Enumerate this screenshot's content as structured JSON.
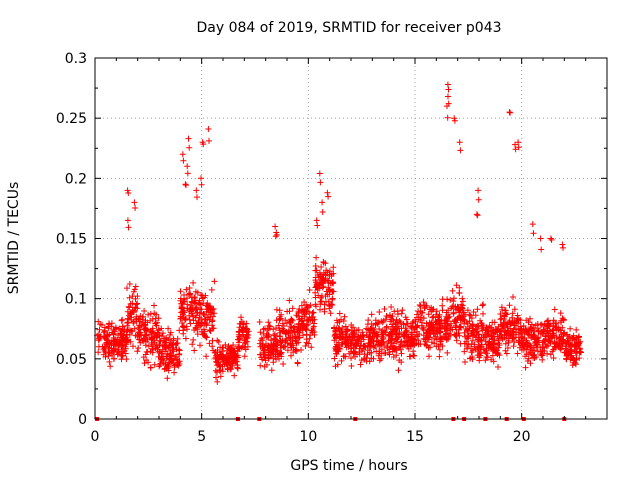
{
  "chart_data": {
    "type": "scatter",
    "title": "Day 084 of 2019, SRMTID for receiver p043",
    "xlabel": "GPS time / hours",
    "ylabel": "SRMTID / TECUs",
    "xlim": [
      0,
      24
    ],
    "ylim": [
      0,
      0.3
    ],
    "xticks": [
      0,
      5,
      10,
      15,
      20
    ],
    "xtick_labels": [
      "0",
      "5",
      "10",
      "15",
      "20"
    ],
    "yticks": [
      0,
      0.05,
      0.1,
      0.15,
      0.2,
      0.25,
      0.3
    ],
    "ytick_labels": [
      "0",
      "0.05",
      "0.1",
      "0.15",
      "0.2",
      "0.25",
      "0.3"
    ],
    "grid": true,
    "marker": "+",
    "marker_color": "#ff0000",
    "series": [
      {
        "name": "SRMTID",
        "note": "dense cloud of ~2500 points between 0.01 and 0.28 TECU; clusters listed as representative samples",
        "clusters": [
          {
            "x": [
              0.1,
              1.5
            ],
            "center": 0.065,
            "spread": 0.03
          },
          {
            "x": [
              1.5,
              2.0
            ],
            "center": 0.085,
            "spread": 0.04,
            "peaks": [
              0.19,
              0.18,
              0.165
            ]
          },
          {
            "x": [
              2.0,
              3.0
            ],
            "center": 0.07,
            "spread": 0.035
          },
          {
            "x": [
              3.0,
              4.0
            ],
            "center": 0.055,
            "spread": 0.03
          },
          {
            "x": [
              4.0,
              4.6
            ],
            "center": 0.09,
            "spread": 0.04,
            "peaks": [
              0.233,
              0.22,
              0.21,
              0.195
            ]
          },
          {
            "x": [
              4.6,
              5.6
            ],
            "center": 0.085,
            "spread": 0.04,
            "peaks": [
              0.241,
              0.23,
              0.2,
              0.19
            ]
          },
          {
            "x": [
              5.6,
              6.7
            ],
            "center": 0.05,
            "spread": 0.025
          },
          {
            "x": [
              6.7,
              7.2
            ],
            "center": 0.07,
            "spread": 0.025
          },
          {
            "x": [
              7.7,
              8.5
            ],
            "center": 0.06,
            "spread": 0.03,
            "peaks": [
              0.16,
              0.155
            ]
          },
          {
            "x": [
              8.5,
              9.5
            ],
            "center": 0.07,
            "spread": 0.035
          },
          {
            "x": [
              9.5,
              10.3
            ],
            "center": 0.08,
            "spread": 0.035
          },
          {
            "x": [
              10.3,
              11.2
            ],
            "center": 0.11,
            "spread": 0.04,
            "peaks": [
              0.204,
              0.188,
              0.18,
              0.165
            ]
          },
          {
            "x": [
              11.2,
              13.0
            ],
            "center": 0.065,
            "spread": 0.03
          },
          {
            "x": [
              13.0,
              15.0
            ],
            "center": 0.07,
            "spread": 0.035
          },
          {
            "x": [
              15.0,
              16.5
            ],
            "center": 0.075,
            "spread": 0.035
          },
          {
            "x": [
              16.5,
              17.3
            ],
            "center": 0.085,
            "spread": 0.04,
            "peaks": [
              0.278,
              0.268,
              0.26,
              0.25,
              0.23
            ]
          },
          {
            "x": [
              17.3,
              18.2
            ],
            "center": 0.07,
            "spread": 0.04,
            "peaks": [
              0.19,
              0.17
            ]
          },
          {
            "x": [
              18.2,
              19.0
            ],
            "center": 0.065,
            "spread": 0.03
          },
          {
            "x": [
              19.0,
              20.0
            ],
            "center": 0.075,
            "spread": 0.035,
            "peaks": [
              0.255,
              0.23,
              0.228
            ]
          },
          {
            "x": [
              20.0,
              21.0
            ],
            "center": 0.065,
            "spread": 0.03,
            "peaks": [
              0.162,
              0.15
            ]
          },
          {
            "x": [
              21.0,
              22.0
            ],
            "center": 0.07,
            "spread": 0.03,
            "peaks": [
              0.15,
              0.145
            ]
          },
          {
            "x": [
              22.0,
              22.8
            ],
            "center": 0.06,
            "spread": 0.025
          }
        ]
      }
    ],
    "zero_markers_x": [
      0.1,
      6.7,
      7.7,
      12.2,
      16.8,
      17.3,
      18.3,
      19.3,
      20.1,
      22.0
    ]
  }
}
